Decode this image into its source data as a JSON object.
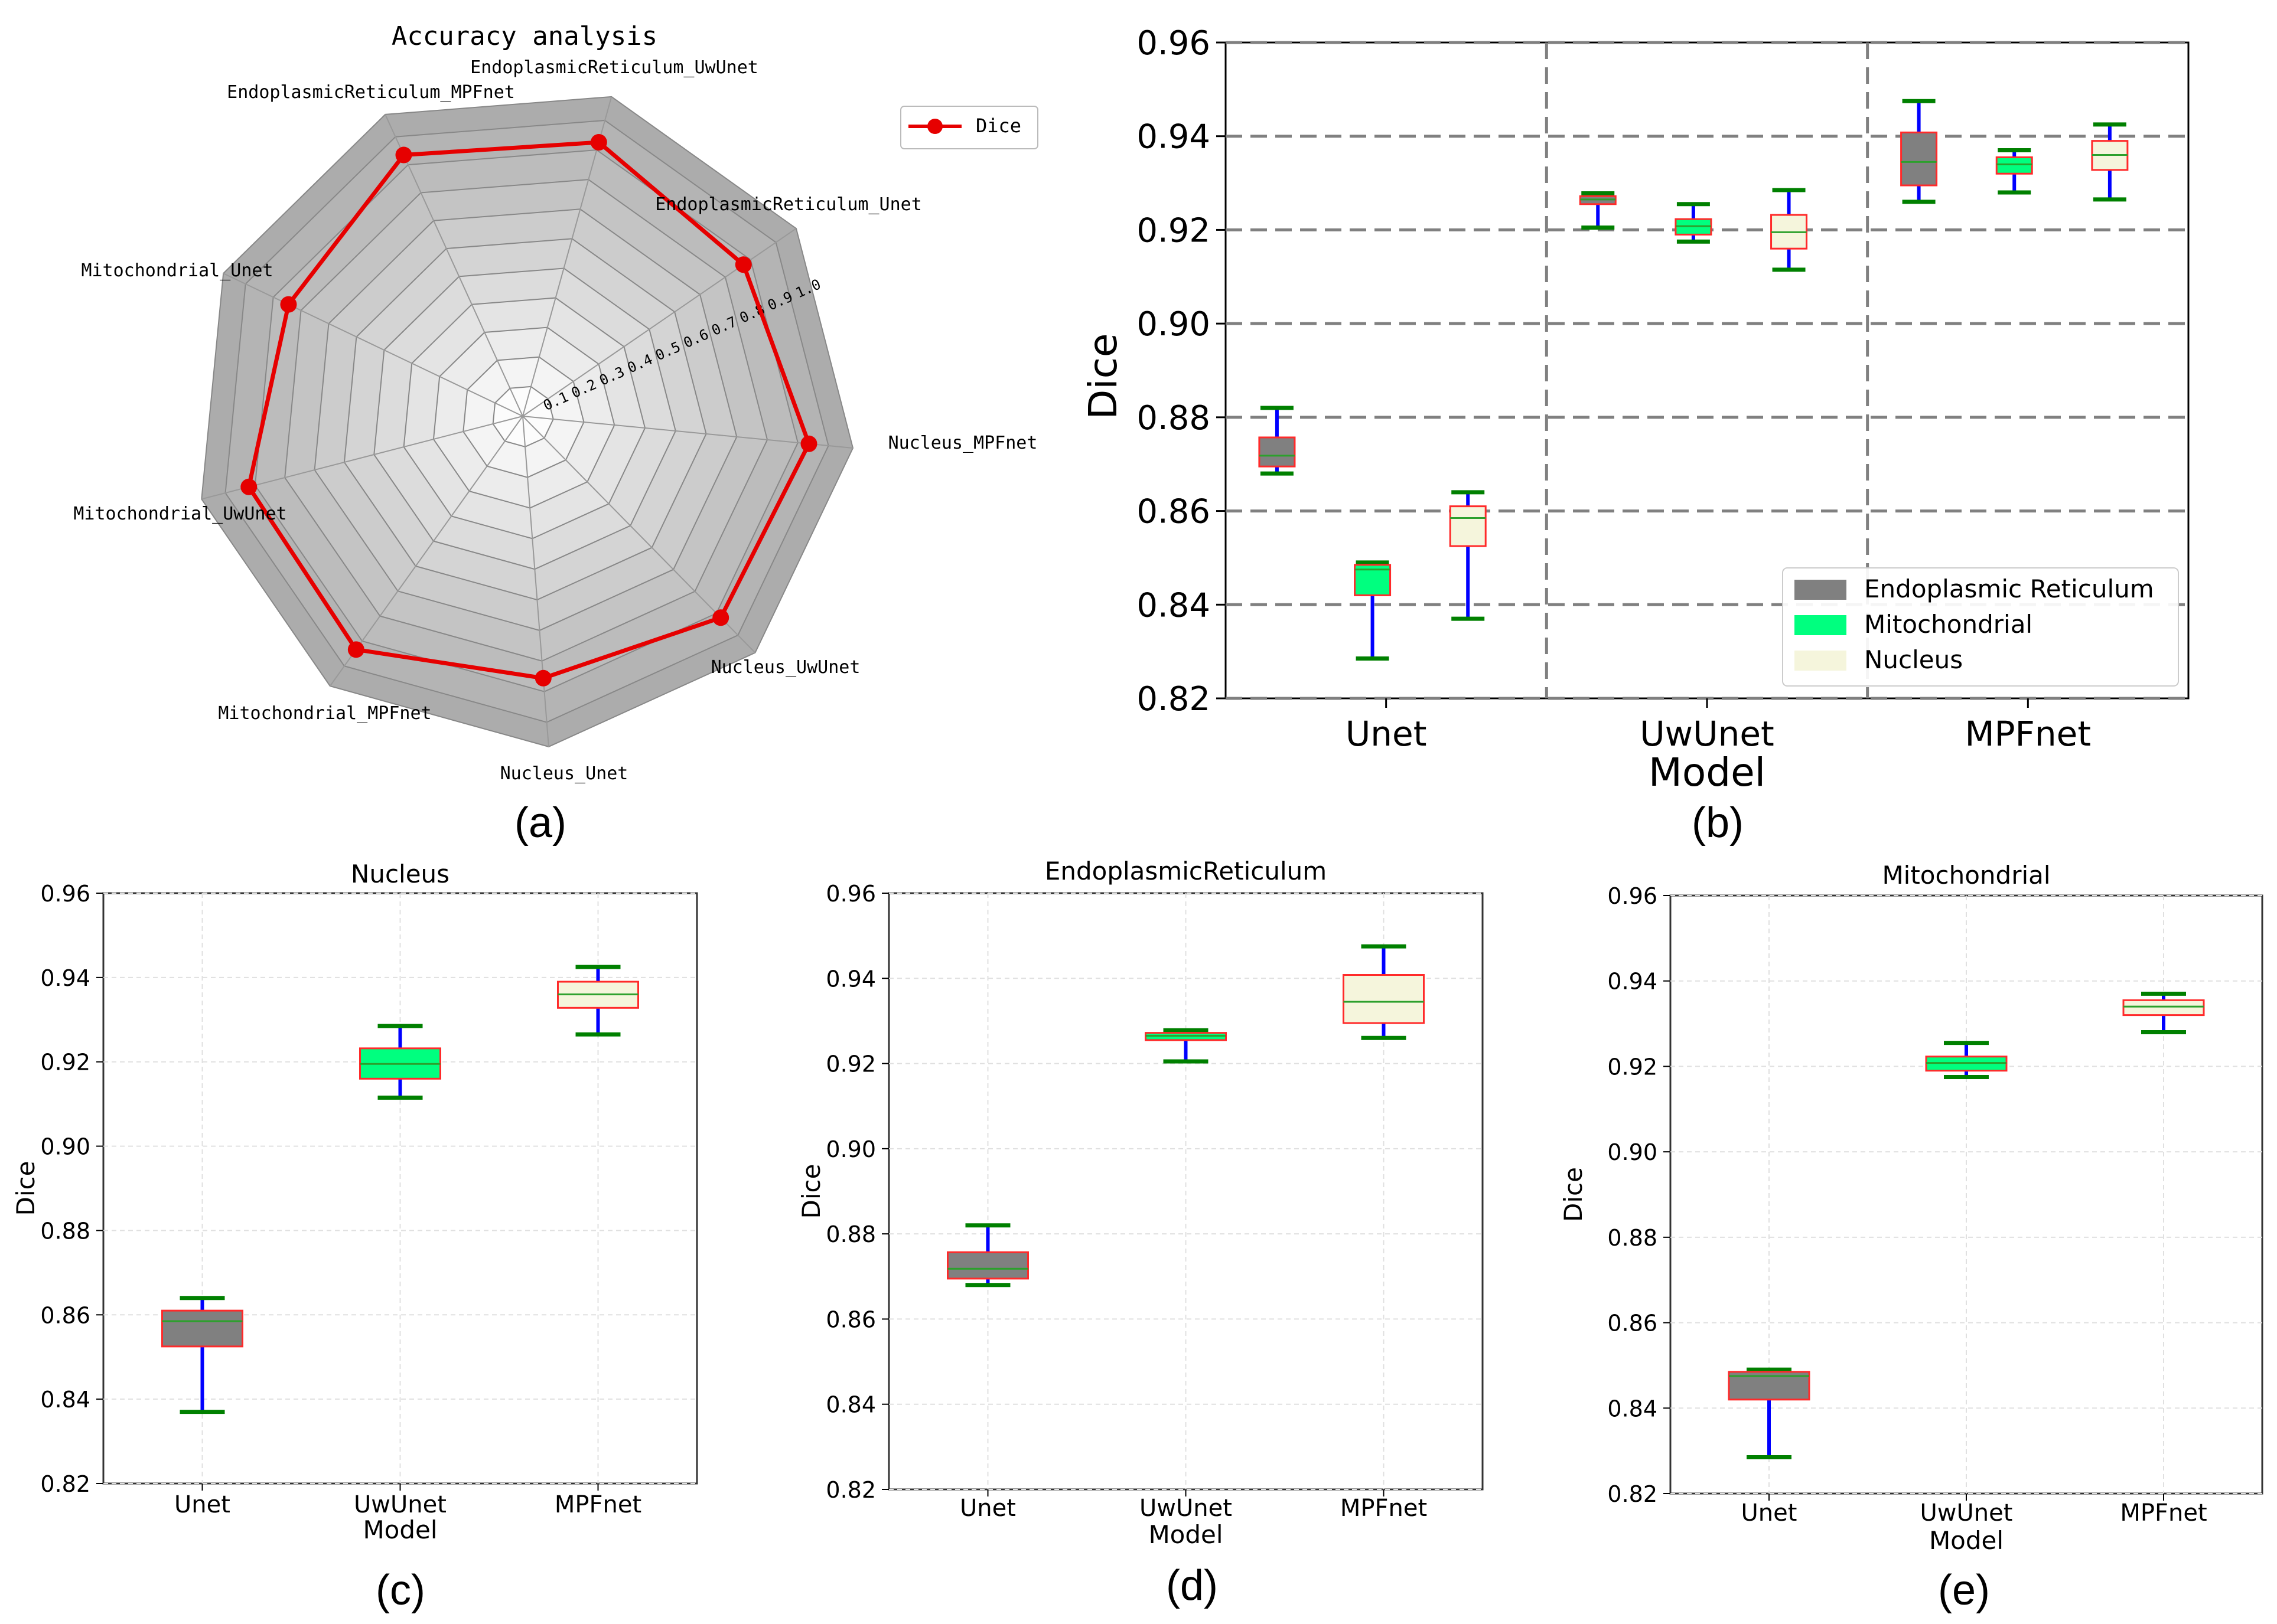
{
  "panel_labels": {
    "a": "(a)",
    "b": "(b)",
    "c": "(c)",
    "d": "(d)",
    "e": "(e)"
  },
  "colors": {
    "er": "#808080",
    "mito": "#00ff7f",
    "nucleus": "#f5f5dc",
    "box_edge": "#ff2a2a",
    "whisker": "#0000ff",
    "cap": "#008000",
    "median": "#2ca02c",
    "radar_line": "#e60000",
    "grid": "#808080"
  },
  "chart_data": [
    {
      "id": "a",
      "type": "radar",
      "title": "Accuracy analysis",
      "rlim": [
        0,
        1.0
      ],
      "radial_ticks": [
        "0.1",
        "0.2",
        "0.3",
        "0.4",
        "0.5",
        "0.6",
        "0.7",
        "0.8",
        "0.9",
        "1.0"
      ],
      "legend": [
        "Dice"
      ],
      "legend_position": "top-right",
      "categories": [
        "EndoplasmicReticulum_UwUnet",
        "EndoplasmicReticulum_Unet",
        "Nucleus_MPFnet",
        "Nucleus_UwUnet",
        "Nucleus_Unet",
        "Mitochondrial_MPFnet",
        "Mitochondrial_UwUnet",
        "Mitochondrial_Unet",
        "EndoplasmicReticulum_MPFnet"
      ],
      "series": [
        {
          "name": "Dice",
          "values": [
            0.926,
            0.872,
            0.936,
            0.92,
            0.856,
            0.934,
            0.921,
            0.845,
            0.935
          ]
        }
      ]
    },
    {
      "id": "b",
      "type": "box",
      "xlabel": "Model",
      "ylabel": "Dice",
      "ylim": [
        0.82,
        0.96
      ],
      "yticks": [
        "0.82",
        "0.84",
        "0.86",
        "0.88",
        "0.90",
        "0.92",
        "0.94",
        "0.96"
      ],
      "categories": [
        "Unet",
        "UwUnet",
        "MPFnet"
      ],
      "grid": "dashed horizontal",
      "legend": [
        "Endoplasmic Reticulum",
        "Mitochondrial",
        "Nucleus"
      ],
      "legend_position": "lower-right",
      "series": [
        {
          "name": "Endoplasmic Reticulum",
          "boxes": [
            {
              "min": 0.868,
              "q1": 0.8695,
              "median": 0.8718,
              "q3": 0.8757,
              "max": 0.882
            },
            {
              "min": 0.9205,
              "q1": 0.9255,
              "median": 0.9265,
              "q3": 0.9272,
              "max": 0.9278
            },
            {
              "min": 0.926,
              "q1": 0.9295,
              "median": 0.9345,
              "q3": 0.9408,
              "max": 0.9475
            }
          ]
        },
        {
          "name": "Mitochondrial",
          "boxes": [
            {
              "min": 0.8285,
              "q1": 0.842,
              "median": 0.8475,
              "q3": 0.8485,
              "max": 0.849
            },
            {
              "min": 0.9175,
              "q1": 0.919,
              "median": 0.9208,
              "q3": 0.9223,
              "max": 0.9255
            },
            {
              "min": 0.928,
              "q1": 0.932,
              "median": 0.934,
              "q3": 0.9355,
              "max": 0.937
            }
          ]
        },
        {
          "name": "Nucleus",
          "boxes": [
            {
              "min": 0.837,
              "q1": 0.8525,
              "median": 0.8585,
              "q3": 0.861,
              "max": 0.864
            },
            {
              "min": 0.9115,
              "q1": 0.916,
              "median": 0.9195,
              "q3": 0.9232,
              "max": 0.9285
            },
            {
              "min": 0.9265,
              "q1": 0.9328,
              "median": 0.936,
              "q3": 0.939,
              "max": 0.9425
            }
          ]
        }
      ]
    },
    {
      "id": "c",
      "type": "box",
      "title": "Nucleus",
      "xlabel": "Model",
      "ylabel": "Dice",
      "ylim": [
        0.82,
        0.96
      ],
      "yticks": [
        "0.82",
        "0.84",
        "0.86",
        "0.88",
        "0.90",
        "0.92",
        "0.94",
        "0.96"
      ],
      "categories": [
        "Unet",
        "UwUnet",
        "MPFnet"
      ],
      "grid": "light dashed",
      "boxes": [
        {
          "min": 0.837,
          "q1": 0.8525,
          "median": 0.8585,
          "q3": 0.861,
          "max": 0.864
        },
        {
          "min": 0.9115,
          "q1": 0.916,
          "median": 0.9195,
          "q3": 0.9232,
          "max": 0.9285
        },
        {
          "min": 0.9265,
          "q1": 0.9328,
          "median": 0.936,
          "q3": 0.939,
          "max": 0.9425
        }
      ]
    },
    {
      "id": "d",
      "type": "box",
      "title": "EndoplasmicReticulum",
      "xlabel": "Model",
      "ylabel": "Dice",
      "ylim": [
        0.82,
        0.96
      ],
      "yticks": [
        "0.82",
        "0.84",
        "0.86",
        "0.88",
        "0.90",
        "0.92",
        "0.94",
        "0.96"
      ],
      "categories": [
        "Unet",
        "UwUnet",
        "MPFnet"
      ],
      "grid": "light dashed",
      "boxes": [
        {
          "min": 0.868,
          "q1": 0.8695,
          "median": 0.8718,
          "q3": 0.8757,
          "max": 0.882
        },
        {
          "min": 0.9205,
          "q1": 0.9255,
          "median": 0.9265,
          "q3": 0.9272,
          "max": 0.9278
        },
        {
          "min": 0.926,
          "q1": 0.9295,
          "median": 0.9345,
          "q3": 0.9408,
          "max": 0.9475
        }
      ]
    },
    {
      "id": "e",
      "type": "box",
      "title": "Mitochondrial",
      "xlabel": "Model",
      "ylabel": "Dice",
      "ylim": [
        0.82,
        0.96
      ],
      "yticks": [
        "0.82",
        "0.84",
        "0.86",
        "0.88",
        "0.90",
        "0.92",
        "0.94",
        "0.96"
      ],
      "categories": [
        "Unet",
        "UwUnet",
        "MPFnet"
      ],
      "grid": "light dashed",
      "boxes": [
        {
          "min": 0.8285,
          "q1": 0.842,
          "median": 0.8475,
          "q3": 0.8485,
          "max": 0.849
        },
        {
          "min": 0.9175,
          "q1": 0.919,
          "median": 0.9208,
          "q3": 0.9223,
          "max": 0.9255
        },
        {
          "min": 0.928,
          "q1": 0.932,
          "median": 0.934,
          "q3": 0.9355,
          "max": 0.937
        }
      ]
    }
  ]
}
